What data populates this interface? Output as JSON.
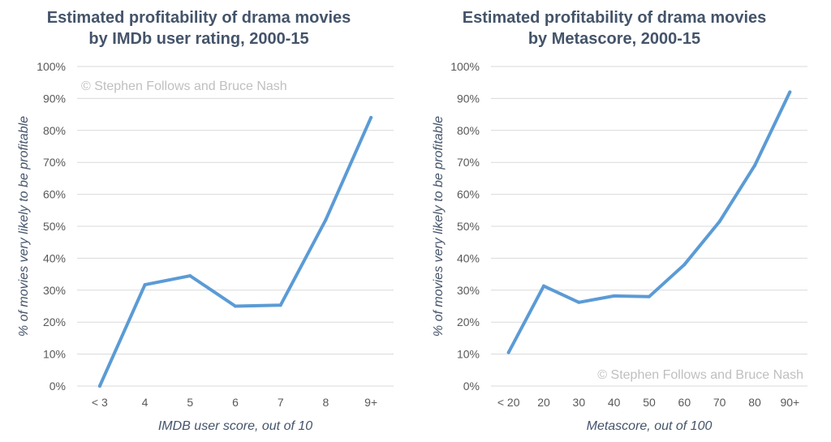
{
  "chart_data": [
    {
      "type": "line",
      "title": [
        "Estimated profitability of drama movies",
        "by IMDb user rating, 2000-15"
      ],
      "xlabel": "IMDB user score, out of 10",
      "ylabel": "% of movies very likely to be profitable",
      "categories": [
        "< 3",
        "4",
        "5",
        "6",
        "7",
        "8",
        "9+"
      ],
      "series": [
        {
          "values": [
            0,
            31.7,
            34.5,
            25.0,
            25.3,
            52.0,
            84.0
          ]
        }
      ],
      "ylim": [
        0,
        100
      ],
      "yticks": [
        "0%",
        "10%",
        "20%",
        "30%",
        "40%",
        "50%",
        "60%",
        "70%",
        "80%",
        "90%",
        "100%"
      ],
      "grid": true,
      "credit": "© Stephen Follows and Bruce Nash",
      "credit_position": "top-left",
      "line_color": "#5b9bd5"
    },
    {
      "type": "line",
      "title": [
        "Estimated profitability of drama movies",
        "by Metascore, 2000-15"
      ],
      "xlabel": "Metascore, out of 100",
      "ylabel": "% of movies very likely to be profitable",
      "categories": [
        "< 20",
        "20",
        "30",
        "40",
        "50",
        "60",
        "70",
        "80",
        "90+"
      ],
      "series": [
        {
          "values": [
            10.5,
            31.3,
            26.2,
            28.2,
            28.0,
            38.0,
            51.5,
            69.0,
            92.0
          ]
        }
      ],
      "ylim": [
        0,
        100
      ],
      "yticks": [
        "0%",
        "10%",
        "20%",
        "30%",
        "40%",
        "50%",
        "60%",
        "70%",
        "80%",
        "90%",
        "100%"
      ],
      "grid": true,
      "credit": "© Stephen Follows and Bruce Nash",
      "credit_position": "bottom-right",
      "line_color": "#5b9bd5"
    }
  ]
}
